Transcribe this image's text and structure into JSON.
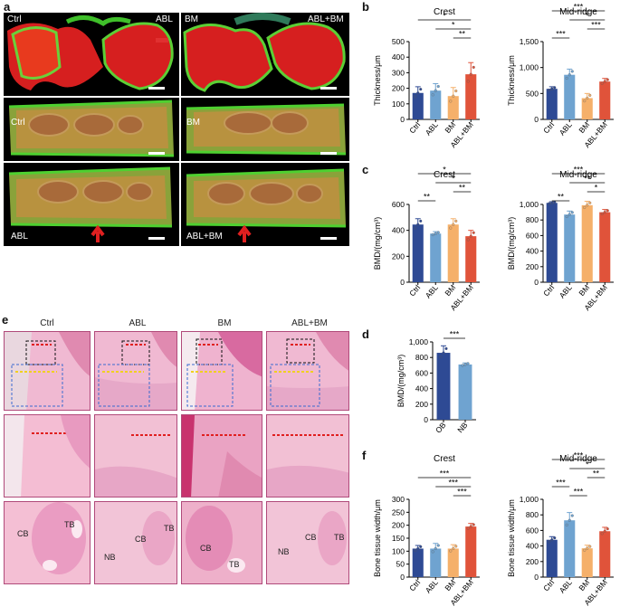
{
  "panels": {
    "a": "a",
    "b": "b",
    "c": "c",
    "d": "d",
    "e": "e",
    "f": "f"
  },
  "panel_a": {
    "top_labels": [
      "Ctrl",
      "ABL",
      "BM",
      "ABL+BM"
    ],
    "mid_labels": [
      "Ctrl",
      "BM"
    ],
    "bottom_labels": [
      "ABL",
      "ABL+BM"
    ]
  },
  "panel_e": {
    "column_titles": [
      "Ctrl",
      "ABL",
      "BM",
      "ABL+BM"
    ],
    "annotations_row3": [
      [
        "CB",
        "TB"
      ],
      [
        "NB",
        "CB",
        "TB"
      ],
      [
        "CB",
        "TB"
      ],
      [
        "NB",
        "CB",
        "TB"
      ]
    ]
  },
  "colors": {
    "ctrl": "#2e4a94",
    "abl": "#6fa3d0",
    "bm": "#f5b06a",
    "ablbm": "#e0533a",
    "ob": "#2e4a94",
    "nb": "#6fa3d0"
  },
  "chart_data": [
    {
      "id": "b1",
      "panel": "b",
      "type": "bar",
      "title": "Crest",
      "ylabel": "Thickness/μm",
      "categories": [
        "Ctrl",
        "ABL",
        "BM",
        "ABL+BM"
      ],
      "values": [
        170,
        185,
        150,
        290
      ],
      "errors": [
        40,
        45,
        55,
        75
      ],
      "ylim": [
        0,
        500
      ],
      "yticks": [
        "0",
        "100",
        "200",
        "300",
        "400",
        "500"
      ],
      "sig": [
        "*",
        "*",
        "**"
      ]
    },
    {
      "id": "b2",
      "panel": "b",
      "type": "bar",
      "title": "Mid-ridge",
      "ylabel": "Thickness/μm",
      "categories": [
        "Ctrl",
        "ABL",
        "BM",
        "ABL+BM"
      ],
      "values": [
        590,
        860,
        410,
        730
      ],
      "errors": [
        40,
        110,
        90,
        60
      ],
      "ylim": [
        0,
        1500
      ],
      "yticks": [
        "0",
        "500",
        "1,000",
        "1,500"
      ],
      "sig": [
        "***",
        "*",
        "***",
        "***"
      ]
    },
    {
      "id": "c1",
      "panel": "c",
      "type": "bar",
      "title": "Crest",
      "ylabel": "BMD/(mg/cm³)",
      "categories": [
        "Ctrl",
        "ABL",
        "BM",
        "ABL+BM"
      ],
      "values": [
        445,
        375,
        445,
        355
      ],
      "errors": [
        45,
        15,
        45,
        45
      ],
      "ylim": [
        0,
        600
      ],
      "yticks": [
        "0",
        "200",
        "400",
        "600"
      ],
      "sig": [
        "*",
        "*",
        "**",
        "**"
      ]
    },
    {
      "id": "c2",
      "panel": "c",
      "type": "bar",
      "title": "Mid-ridge",
      "ylabel": "BMD/(mg/cm³)",
      "categories": [
        "Ctrl",
        "ABL",
        "BM",
        "ABL+BM"
      ],
      "values": [
        1020,
        870,
        990,
        900
      ],
      "errors": [
        15,
        45,
        50,
        35
      ],
      "ylim": [
        0,
        1000
      ],
      "yticks": [
        "0",
        "200",
        "400",
        "600",
        "800",
        "1,000"
      ],
      "sig": [
        "***",
        "**",
        "*",
        "**"
      ]
    },
    {
      "id": "d",
      "panel": "d",
      "type": "bar",
      "title": "",
      "ylabel": "BMD/(mg/cm³)",
      "categories": [
        "OB",
        "NB"
      ],
      "values": [
        860,
        710
      ],
      "errors": [
        90,
        20
      ],
      "ylim": [
        0,
        1000
      ],
      "yticks": [
        "0",
        "200",
        "400",
        "600",
        "800",
        "1,000"
      ],
      "sig": [
        "***"
      ]
    },
    {
      "id": "f1",
      "panel": "f",
      "type": "bar",
      "title": "Crest",
      "ylabel": "Bone tissue width/μm",
      "categories": [
        "Ctrl",
        "ABL",
        "BM",
        "ABL+BM"
      ],
      "values": [
        110,
        110,
        110,
        195
      ],
      "errors": [
        12,
        20,
        15,
        12
      ],
      "ylim": [
        0,
        300
      ],
      "yticks": [
        "0",
        "50",
        "100",
        "150",
        "200",
        "250",
        "300"
      ],
      "sig": [
        "***",
        "***",
        "***"
      ]
    },
    {
      "id": "f2",
      "panel": "f",
      "type": "bar",
      "title": "Mid-ridge",
      "ylabel": "Bone tissue width/μm",
      "categories": [
        "Ctrl",
        "ABL",
        "BM",
        "ABL+BM"
      ],
      "values": [
        480,
        730,
        370,
        590
      ],
      "errors": [
        40,
        100,
        40,
        50
      ],
      "ylim": [
        0,
        1000
      ],
      "yticks": [
        "0",
        "200",
        "400",
        "600",
        "800",
        "1,000"
      ],
      "sig": [
        "***",
        "*",
        "**",
        "***",
        "***"
      ]
    }
  ]
}
